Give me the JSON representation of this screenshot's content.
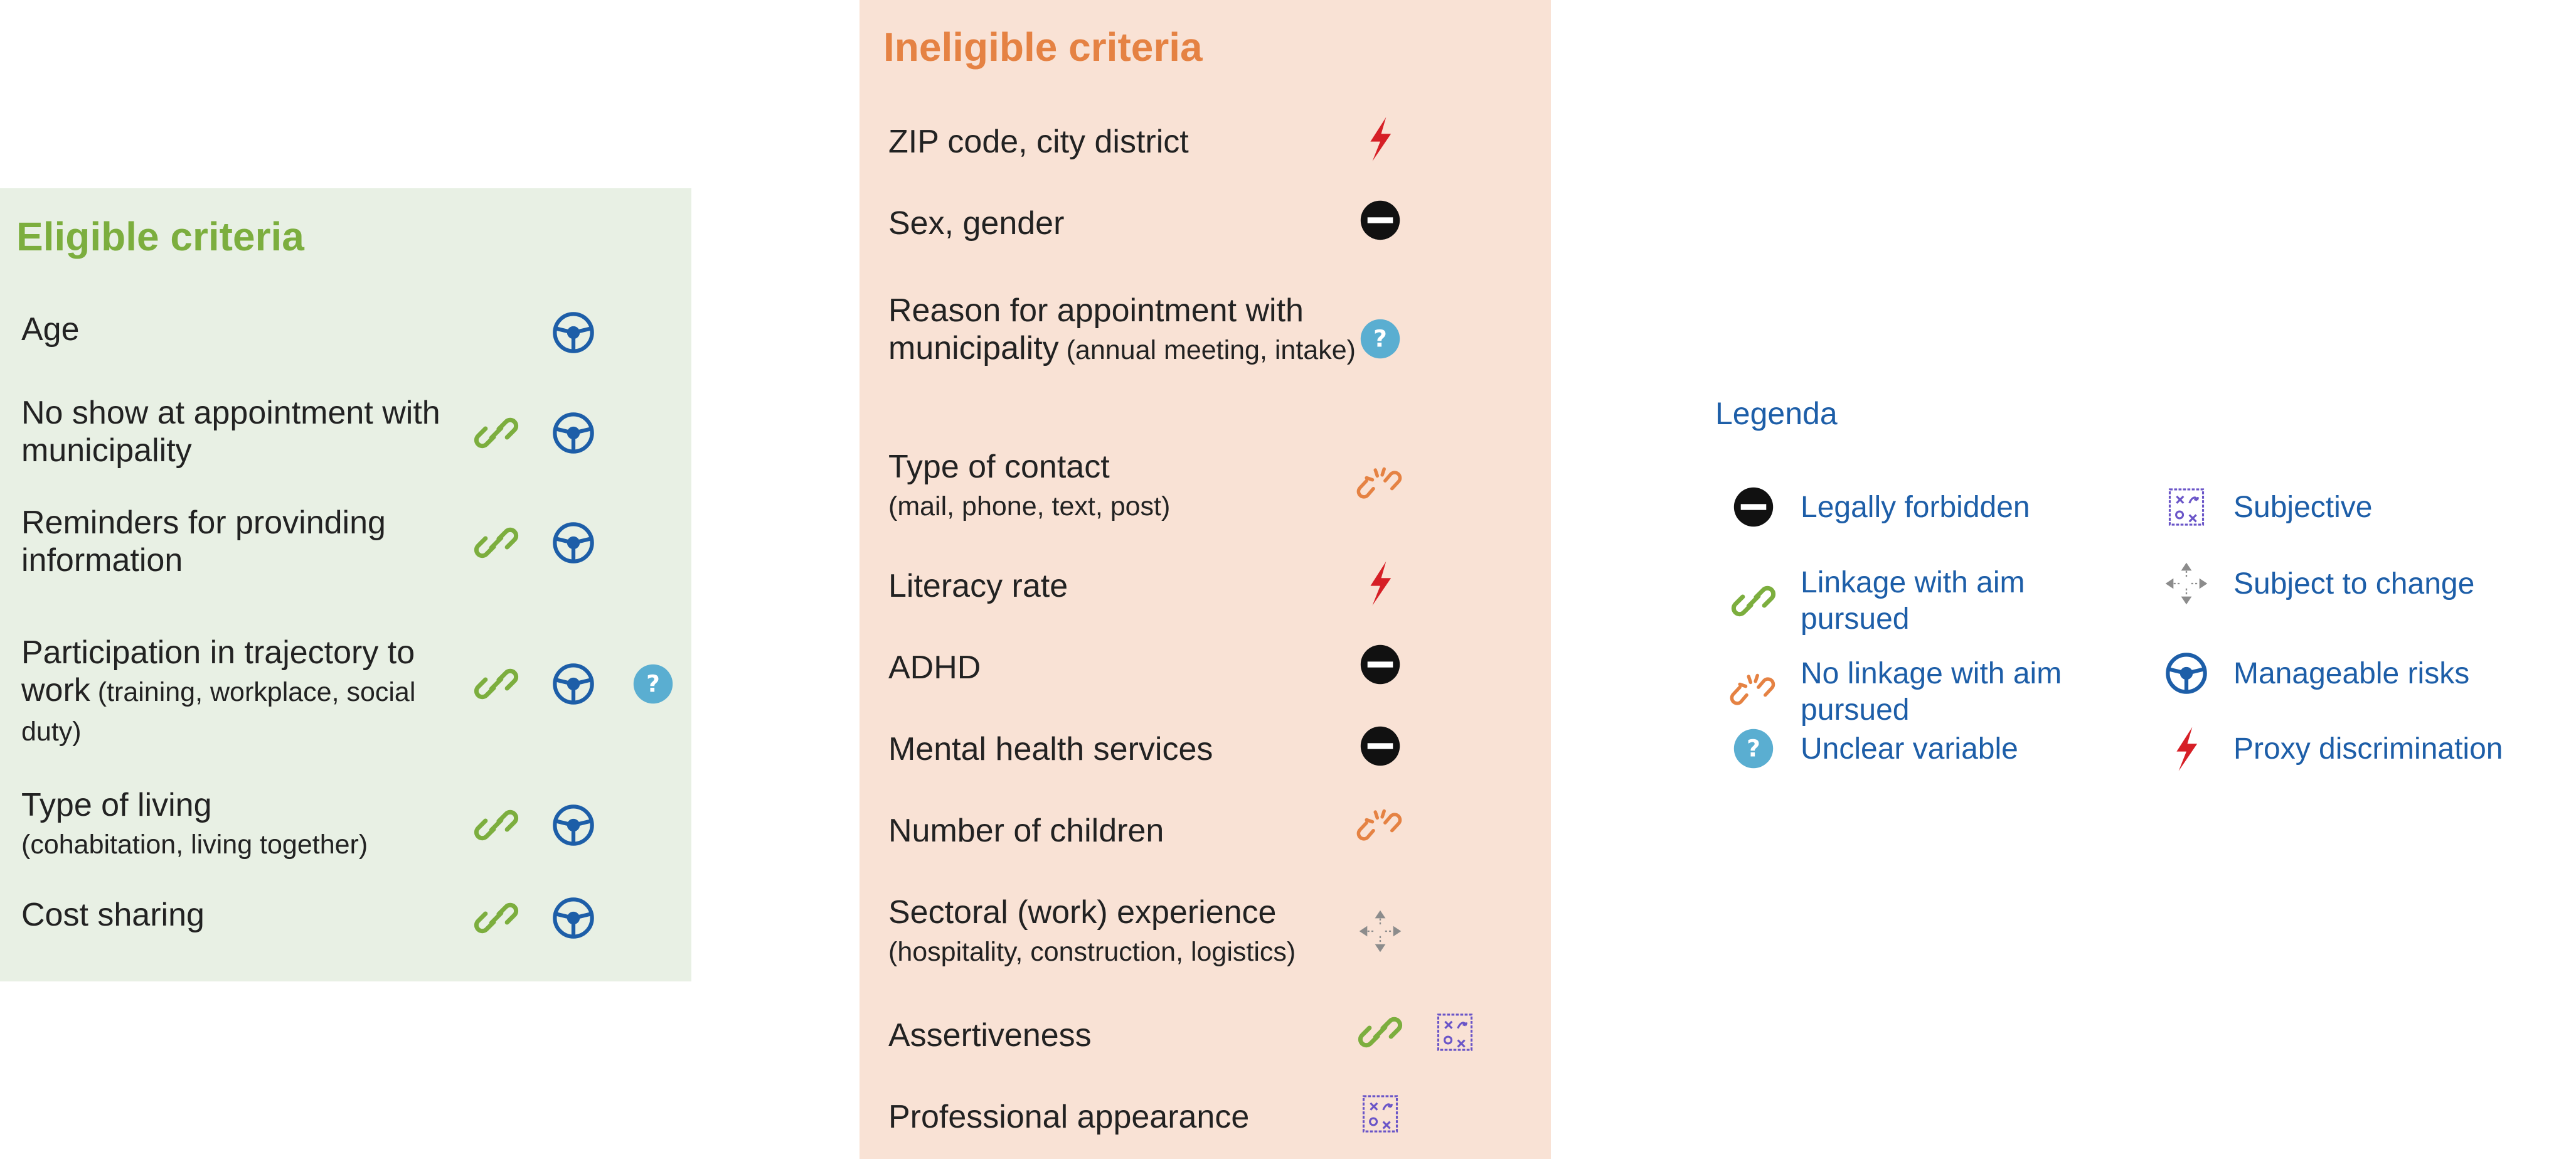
{
  "colors": {
    "eligible_bg": "#e8f0e4",
    "eligible_title": "#7cae3e",
    "ineligible_bg": "#f9e2d5",
    "ineligible_title": "#e58243",
    "legend_text": "#1d5ea8",
    "link_green": "#7cae3e",
    "link_orange": "#e58243",
    "forbidden_black": "#111111",
    "unclear_blue": "#5aaed1",
    "manageable_blue": "#1d5ea8",
    "proxy_red": "#d61f26",
    "subjective_purple": "#6a55c8",
    "change_grey": "#8c8c8c"
  },
  "eligible": {
    "title": "Eligible criteria",
    "rows": [
      {
        "label": "Age",
        "sub": "",
        "icons": [
          "manageable-risks"
        ]
      },
      {
        "label": "No show at appointment with municipality",
        "sub": "",
        "icons": [
          "linkage-with-aim",
          "manageable-risks"
        ]
      },
      {
        "label": "Reminders for provinding information",
        "sub": "",
        "icons": [
          "linkage-with-aim",
          "manageable-risks"
        ]
      },
      {
        "label": "Participation in trajectory to work",
        "sub": "(training, workplace, social duty)",
        "icons": [
          "linkage-with-aim",
          "manageable-risks",
          "unclear-variable"
        ]
      },
      {
        "label": "Type of living",
        "sub": "(cohabitation, living together)",
        "icons": [
          "linkage-with-aim",
          "manageable-risks"
        ]
      },
      {
        "label": "Cost sharing",
        "sub": "",
        "icons": [
          "linkage-with-aim",
          "manageable-risks"
        ]
      }
    ]
  },
  "ineligible": {
    "title": "Ineligible criteria",
    "rows": [
      {
        "label": "ZIP code, city district",
        "sub": "",
        "icons": [
          "proxy-discrimination"
        ]
      },
      {
        "label": "Sex, gender",
        "sub": "",
        "icons": [
          "legally-forbidden"
        ]
      },
      {
        "label": "Reason for appointment with municipality",
        "sub": "(annual meeting, intake)",
        "icons": [
          "unclear-variable"
        ]
      },
      {
        "label": "Type of contact",
        "sub": "(mail, phone, text, post)",
        "icons": [
          "no-linkage-with-aim"
        ]
      },
      {
        "label": "Literacy rate",
        "sub": "",
        "icons": [
          "proxy-discrimination"
        ]
      },
      {
        "label": "ADHD",
        "sub": "",
        "icons": [
          "legally-forbidden"
        ]
      },
      {
        "label": "Mental health services",
        "sub": "",
        "icons": [
          "legally-forbidden"
        ]
      },
      {
        "label": "Number of children",
        "sub": "",
        "icons": [
          "no-linkage-with-aim"
        ]
      },
      {
        "label": "Sectoral (work) experience",
        "sub": "(hospitality, construction, logistics)",
        "icons": [
          "subject-to-change"
        ]
      },
      {
        "label": "Assertiveness",
        "sub": "",
        "icons": [
          "linkage-with-aim",
          "subjective"
        ]
      },
      {
        "label": "Professional appearance",
        "sub": "",
        "icons": [
          "subjective"
        ]
      }
    ]
  },
  "legend": {
    "title": "Legenda",
    "items": [
      {
        "icon": "legally-forbidden",
        "label": "Legally forbidden"
      },
      {
        "icon": "linkage-with-aim",
        "label": "Linkage with aim pursued"
      },
      {
        "icon": "no-linkage-with-aim",
        "label": "No linkage with aim pursued"
      },
      {
        "icon": "unclear-variable",
        "label": "Unclear variable"
      },
      {
        "icon": "subjective",
        "label": "Subjective"
      },
      {
        "icon": "subject-to-change",
        "label": "Subject to change"
      },
      {
        "icon": "manageable-risks",
        "label": "Manageable risks"
      },
      {
        "icon": "proxy-discrimination",
        "label": "Proxy discrimination"
      }
    ]
  }
}
